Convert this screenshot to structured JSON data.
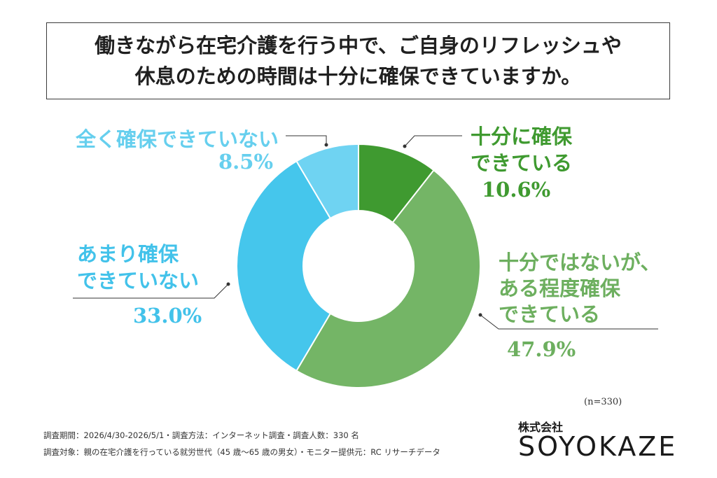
{
  "title": {
    "line1": "働きながら在宅介護を行う中で、ご自身のリフレッシュや",
    "line2": "休息のための時間は十分に確保できていますか。"
  },
  "chart_data": {
    "type": "pie",
    "variant": "donut",
    "series": [
      {
        "name": "十分に確保できている",
        "value": 10.6,
        "label_lines": [
          "十分に確保",
          "できている"
        ],
        "pct_label": "10.6%",
        "color": "#3f9a30"
      },
      {
        "name": "十分ではないが、ある程度確保できている",
        "value": 47.9,
        "label_lines": [
          "十分ではないが、",
          "ある程度確保",
          "できている"
        ],
        "pct_label": "47.9%",
        "color": "#74b566"
      },
      {
        "name": "あまり確保できていない",
        "value": 33.0,
        "label_lines": [
          "あまり確保",
          "できていない"
        ],
        "pct_label": "33.0%",
        "color": "#45c6ec"
      },
      {
        "name": "全く確保できていない",
        "value": 8.5,
        "label_lines": [
          "全く確保できていない"
        ],
        "pct_label": "8.5%",
        "color": "#6fd3f2"
      }
    ],
    "start_angle_deg": 0,
    "direction": "clockwise"
  },
  "note_n": "(n=330)",
  "footer": {
    "line1": "調査期間：2026/4/30-2026/5/1・調査方法：インターネット調査・調査人数：330 名",
    "line2": "調査対象：親の在宅介護を行っている就労世代（45 歳〜65 歳の男女）・モニター提供元：RC リサーチデータ"
  },
  "company": {
    "small": "株式会社",
    "logo": "SOYOKAZE"
  }
}
